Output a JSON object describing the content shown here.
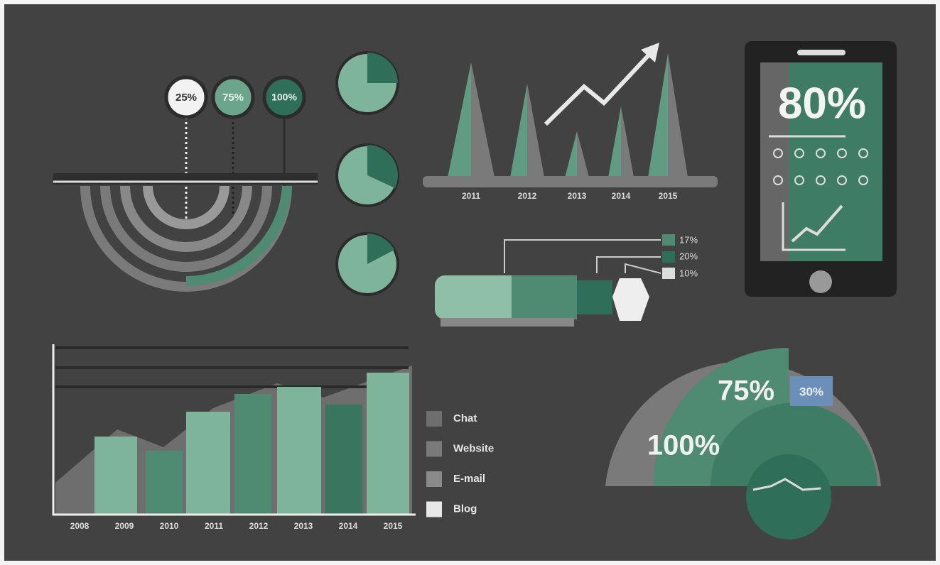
{
  "badges": [
    "25%",
    "75%",
    "100%"
  ],
  "cone_years": [
    "2011",
    "2012",
    "2013",
    "2014",
    "2015"
  ],
  "phone_value": "80%",
  "cylinder_labels": [
    "17%",
    "20%",
    "10%"
  ],
  "area_years": [
    "2008",
    "2009",
    "2010",
    "2011",
    "2012",
    "2013",
    "2014",
    "2015"
  ],
  "legend": [
    "Chat",
    "Website",
    "E-mail",
    "Blog"
  ],
  "half_circle": {
    "inner": "75%",
    "box": "30%",
    "outer": "100%"
  }
}
